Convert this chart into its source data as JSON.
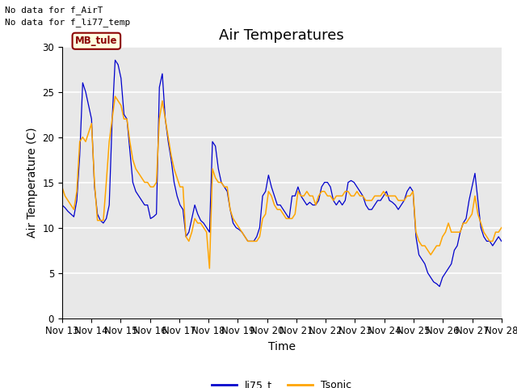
{
  "title": "Air Temperatures",
  "xlabel": "Time",
  "ylabel": "Air Temperature (C)",
  "ylim": [
    0,
    30
  ],
  "x_tick_labels": [
    "Nov 13",
    "Nov 14",
    "Nov 15",
    "Nov 16",
    "Nov 17",
    "Nov 18",
    "Nov 19",
    "Nov 20",
    "Nov 21",
    "Nov 22",
    "Nov 23",
    "Nov 24",
    "Nov 25",
    "Nov 26",
    "Nov 27",
    "Nov 28"
  ],
  "line1_color": "#0000CC",
  "line2_color": "#FFA500",
  "line1_label": "li75_t",
  "line2_label": "Tsonic",
  "annotation_text1": "No data for f_AirT",
  "annotation_text2": "No data for f_li77_temp",
  "legend_label_box": "MB_tule",
  "legend_box_color": "#8B0000",
  "legend_box_bg": "#FFFFE0",
  "bg_color": "#E8E8E8",
  "grid_color": "#FFFFFF",
  "title_fontsize": 13,
  "axis_fontsize": 10,
  "tick_fontsize": 8.5,
  "legend_fontsize": 9,
  "li75_t": [
    12.5,
    12.2,
    11.8,
    11.5,
    11.2,
    13.0,
    18.0,
    26.0,
    25.0,
    23.5,
    22.0,
    14.5,
    11.5,
    10.8,
    10.5,
    11.0,
    12.5,
    22.0,
    28.5,
    28.0,
    26.5,
    22.5,
    22.0,
    18.5,
    15.0,
    14.0,
    13.5,
    13.0,
    12.5,
    12.5,
    11.0,
    11.2,
    11.5,
    25.5,
    27.0,
    22.0,
    19.5,
    17.5,
    15.0,
    13.5,
    12.5,
    12.0,
    9.0,
    9.5,
    11.0,
    12.5,
    11.5,
    10.8,
    10.5,
    10.0,
    9.5,
    19.5,
    19.0,
    16.5,
    15.0,
    14.5,
    14.0,
    12.0,
    10.5,
    10.0,
    9.8,
    9.5,
    9.0,
    8.5,
    8.5,
    8.5,
    9.0,
    10.0,
    13.5,
    14.0,
    15.8,
    14.5,
    13.5,
    12.5,
    12.5,
    12.0,
    11.5,
    11.0,
    13.5,
    13.5,
    14.5,
    13.5,
    13.0,
    12.5,
    12.8,
    12.5,
    12.5,
    13.0,
    14.5,
    15.0,
    15.0,
    14.5,
    13.0,
    12.5,
    13.0,
    12.5,
    13.0,
    15.0,
    15.2,
    15.0,
    14.5,
    14.0,
    13.5,
    12.5,
    12.0,
    12.0,
    12.5,
    13.0,
    13.0,
    13.5,
    14.0,
    13.0,
    12.8,
    12.5,
    12.0,
    12.5,
    13.0,
    14.0,
    14.5,
    14.0,
    9.0,
    7.0,
    6.5,
    6.0,
    5.0,
    4.5,
    4.0,
    3.8,
    3.5,
    4.5,
    5.0,
    5.5,
    6.0,
    7.5,
    8.0,
    9.5,
    10.5,
    11.0,
    13.0,
    14.5,
    16.0,
    13.0,
    10.0,
    9.0,
    8.5,
    8.5,
    8.0,
    8.5,
    9.0,
    8.5
  ],
  "Tsonic": [
    14.5,
    13.5,
    13.0,
    12.5,
    12.0,
    14.0,
    19.5,
    20.0,
    19.5,
    20.5,
    21.5,
    15.0,
    10.8,
    10.8,
    10.8,
    15.0,
    19.5,
    22.0,
    24.5,
    24.0,
    23.5,
    22.0,
    22.0,
    19.5,
    17.5,
    16.5,
    16.0,
    15.5,
    15.0,
    15.0,
    14.5,
    14.5,
    15.0,
    22.0,
    24.0,
    22.0,
    20.0,
    18.0,
    16.5,
    15.5,
    14.5,
    14.5,
    9.0,
    8.5,
    9.5,
    11.0,
    10.5,
    10.5,
    10.0,
    9.5,
    5.5,
    16.5,
    15.5,
    15.0,
    15.0,
    14.5,
    14.5,
    12.0,
    11.0,
    10.5,
    10.0,
    9.5,
    9.0,
    8.5,
    8.5,
    8.5,
    8.5,
    9.0,
    11.0,
    11.5,
    14.0,
    13.5,
    12.5,
    12.0,
    12.0,
    11.5,
    11.0,
    11.0,
    11.0,
    11.5,
    14.0,
    13.5,
    13.5,
    14.0,
    13.5,
    13.5,
    12.5,
    13.5,
    14.0,
    14.0,
    13.5,
    13.5,
    13.0,
    13.5,
    13.5,
    13.5,
    14.0,
    14.0,
    13.5,
    13.5,
    14.0,
    13.5,
    13.5,
    13.0,
    13.0,
    13.0,
    13.5,
    13.5,
    13.5,
    14.0,
    13.5,
    13.5,
    13.5,
    13.5,
    13.0,
    13.0,
    13.0,
    13.5,
    13.5,
    14.0,
    9.5,
    8.5,
    8.0,
    8.0,
    7.5,
    7.0,
    7.5,
    8.0,
    8.0,
    9.0,
    9.5,
    10.5,
    9.5,
    9.5,
    9.5,
    9.5,
    10.5,
    10.5,
    11.0,
    11.5,
    13.5,
    11.5,
    10.5,
    9.5,
    9.0,
    8.5,
    8.5,
    9.5,
    9.5,
    10.0
  ]
}
